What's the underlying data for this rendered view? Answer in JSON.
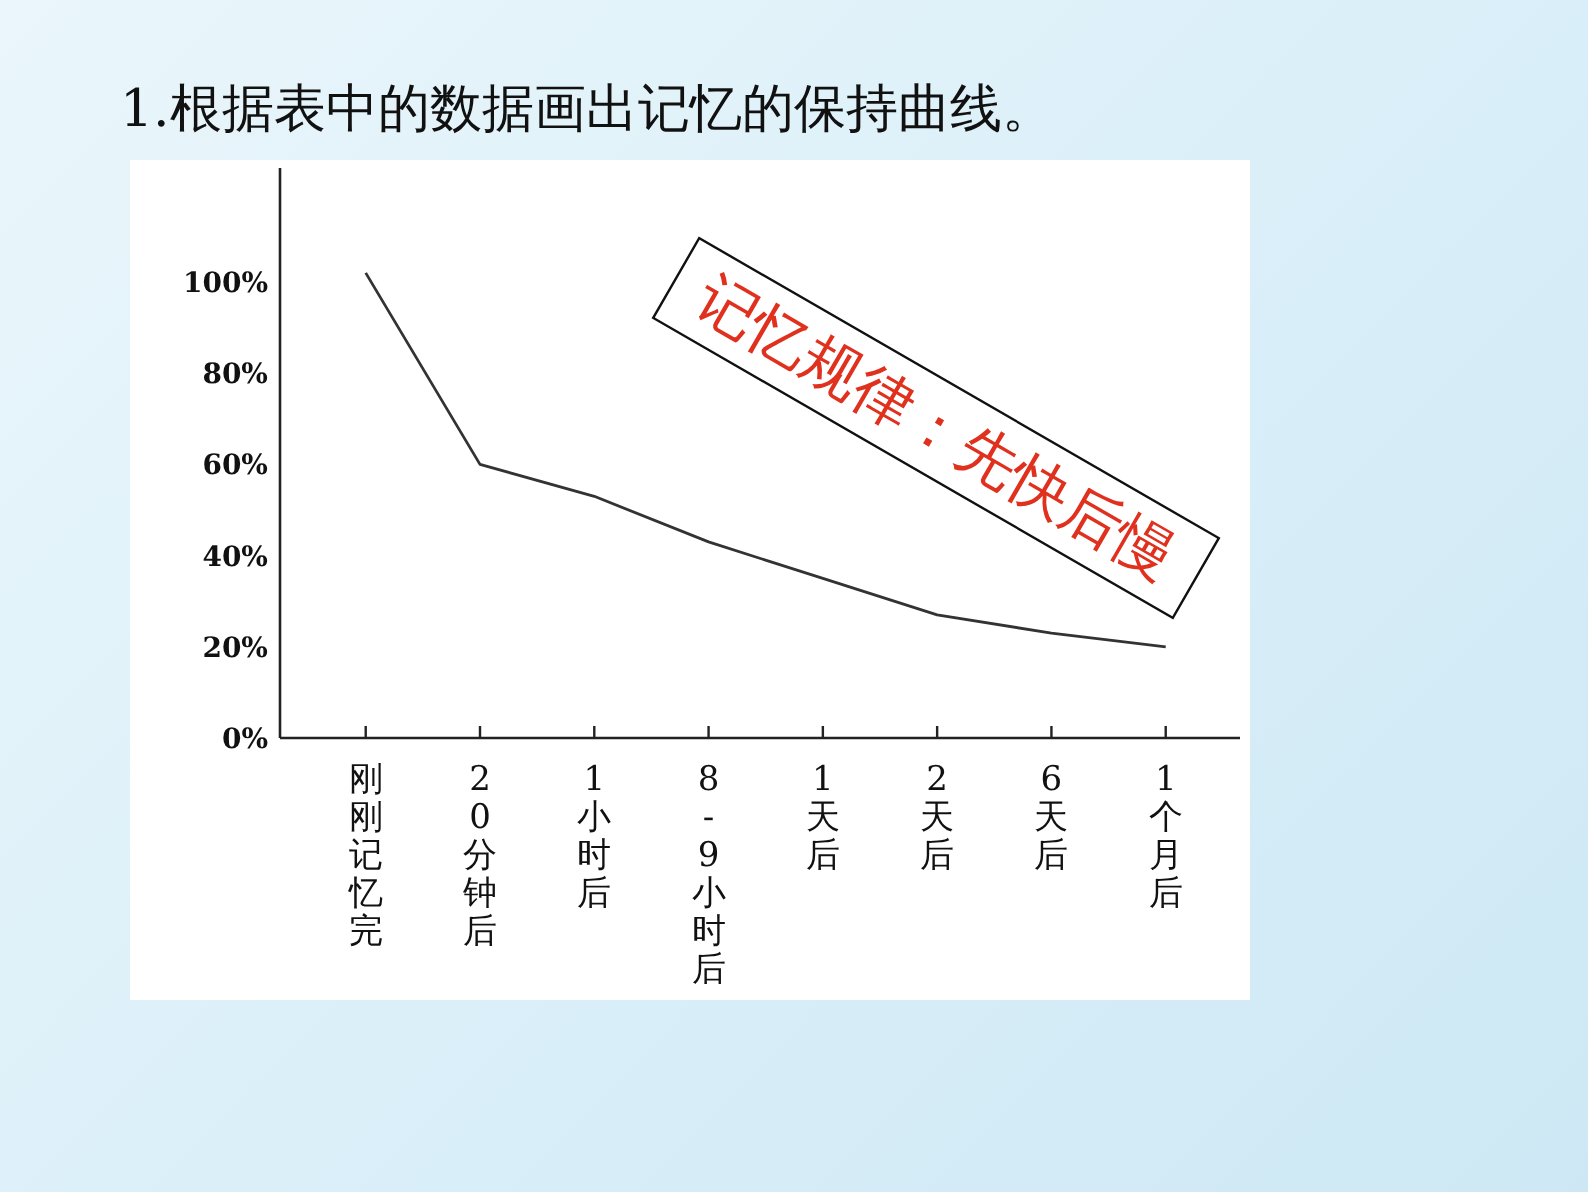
{
  "chart_data": {
    "type": "line",
    "title": "1.根据表中的数据画出记忆的保持曲线。",
    "categories": [
      "刚刚记忆完",
      "20分钟后",
      "1小时后",
      "8-9小时后",
      "1天后",
      "2天后",
      "6天后",
      "1个月后"
    ],
    "series": [
      {
        "color": "#333333",
        "values": [
          102,
          60,
          53,
          43,
          35,
          27,
          23,
          20
        ]
      }
    ],
    "ylim": [
      0,
      125
    ],
    "yticks": [
      {
        "value": 0,
        "label": "0%"
      },
      {
        "value": 20,
        "label": "20%"
      },
      {
        "value": 40,
        "label": "40%"
      },
      {
        "value": 60,
        "label": "60%"
      },
      {
        "value": 80,
        "label": "80%"
      },
      {
        "value": 100,
        "label": "100%"
      }
    ],
    "annotations": [
      "记忆规律：先快后慢"
    ],
    "grid": false,
    "marker": "none",
    "line_style": "solid"
  }
}
